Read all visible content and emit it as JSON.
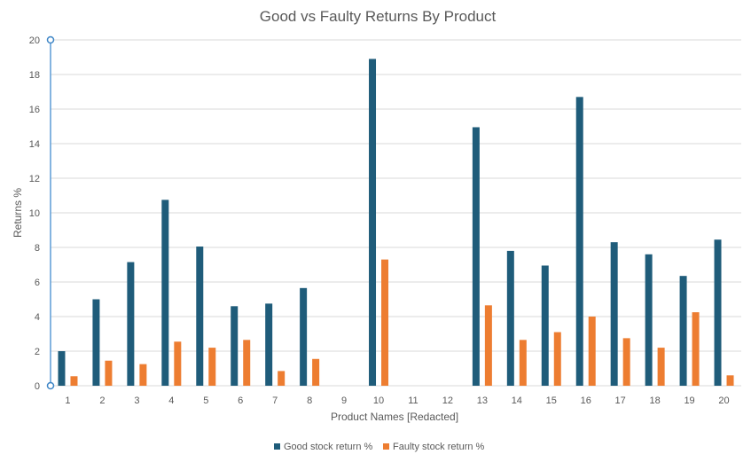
{
  "chart_data": {
    "type": "bar",
    "title": "Good vs Faulty Returns By Product",
    "xlabel": "Product Names [Redacted]",
    "ylabel": "Returns %",
    "categories": [
      "1",
      "2",
      "3",
      "4",
      "5",
      "6",
      "7",
      "8",
      "9",
      "10",
      "11",
      "12",
      "13",
      "14",
      "15",
      "16",
      "17",
      "18",
      "19",
      "20"
    ],
    "series": [
      {
        "name": "Good stock return %",
        "color": "#1f5c7a",
        "values": [
          2.0,
          5.0,
          7.15,
          10.75,
          8.05,
          4.6,
          4.75,
          5.65,
          0,
          18.9,
          0,
          0,
          14.95,
          7.8,
          6.95,
          16.7,
          8.3,
          7.6,
          6.35,
          8.45
        ]
      },
      {
        "name": "Faulty stock return %",
        "color": "#ed7d31",
        "values": [
          0.55,
          1.45,
          1.25,
          2.55,
          2.2,
          2.65,
          0.85,
          1.55,
          0,
          7.3,
          0,
          0,
          4.65,
          2.65,
          3.1,
          4.0,
          2.75,
          2.2,
          4.25,
          0.6
        ]
      }
    ],
    "ylim": [
      0,
      20
    ],
    "yticks": [
      0,
      2,
      4,
      6,
      8,
      10,
      12,
      14,
      16,
      18,
      20
    ],
    "grid": true,
    "legend_position": "bottom"
  }
}
